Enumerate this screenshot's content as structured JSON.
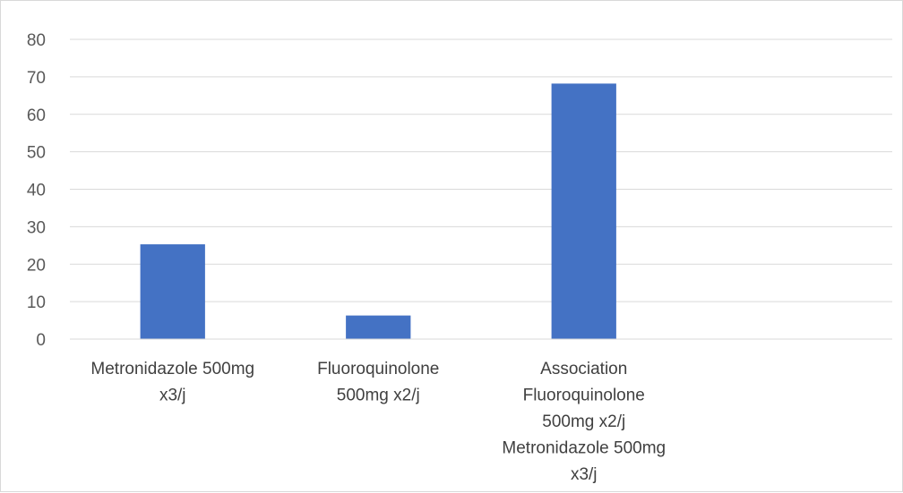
{
  "chart_data": {
    "type": "bar",
    "categories": [
      [
        "Metronidazole 500mg",
        "x3/j"
      ],
      [
        "Fluoroquinolone",
        "500mg x2/j"
      ],
      [
        "Association",
        "Fluoroquinolone",
        "500mg x2/j",
        "Metronidazole 500mg",
        "x3/j"
      ],
      [
        ""
      ]
    ],
    "values": [
      25.3,
      6.3,
      68.2,
      null
    ],
    "yticks": [
      0,
      10,
      20,
      30,
      40,
      50,
      60,
      70,
      80
    ],
    "ylim": [
      0,
      80
    ],
    "grid": true,
    "legend": "none",
    "title": "",
    "xlabel": "",
    "ylabel": "",
    "colors": {
      "bar": "#4472c4",
      "grid": "#d9d9d9",
      "axis": "#d9d9d9"
    }
  }
}
